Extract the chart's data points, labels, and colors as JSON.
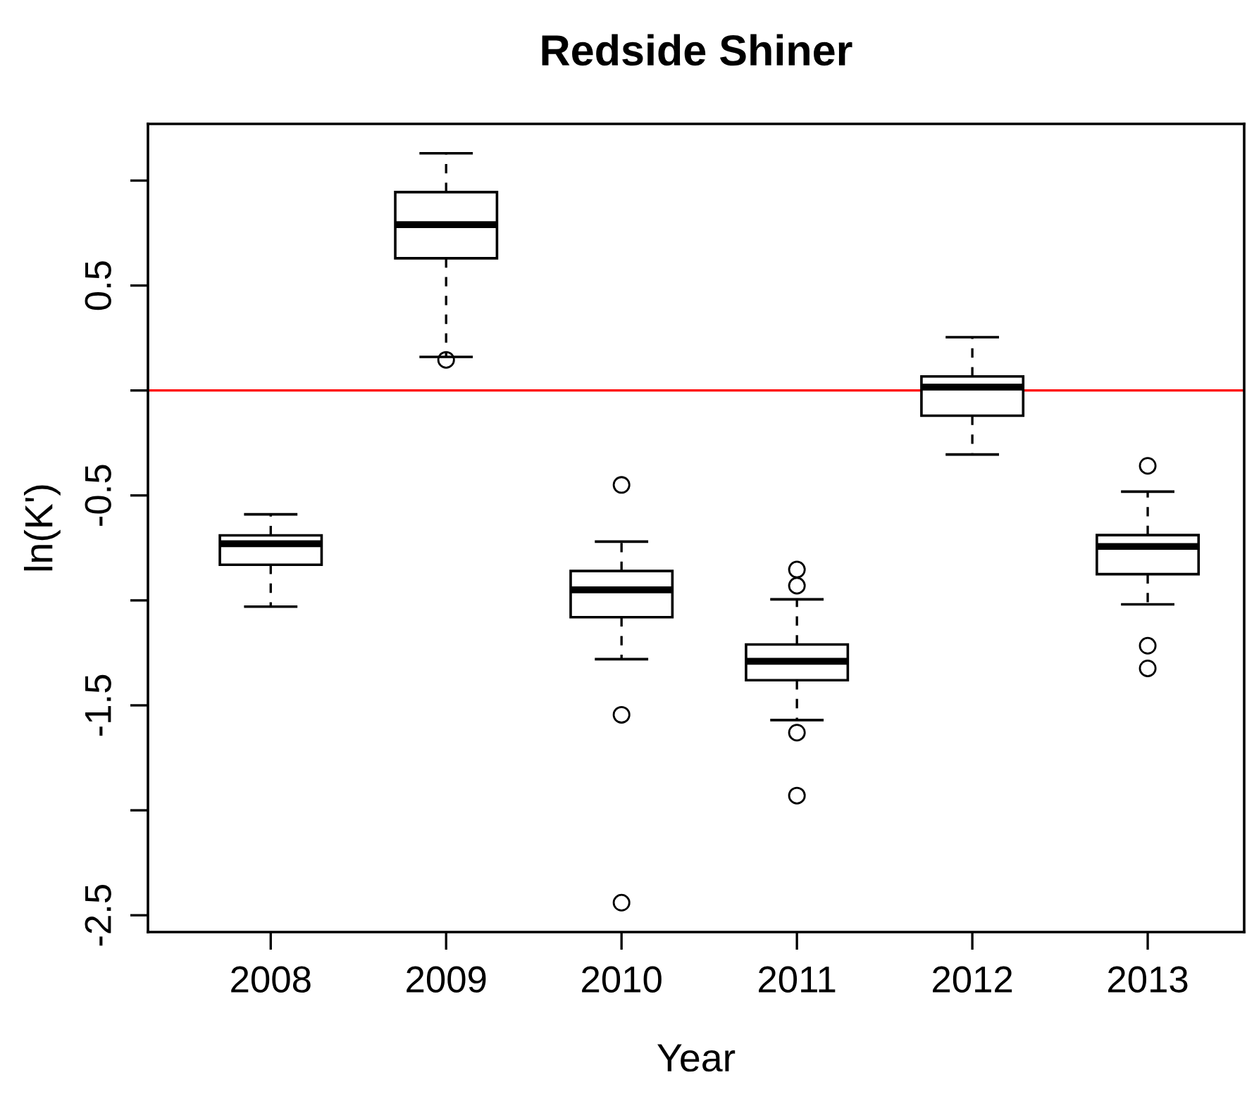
{
  "chart_data": {
    "type": "box",
    "title": "Redside Shiner",
    "xlabel": "Year",
    "ylabel": "ln(K')",
    "categories": [
      "2008",
      "2009",
      "2010",
      "2011",
      "2012",
      "2013"
    ],
    "boxes": [
      {
        "low": -1.03,
        "q1": -0.83,
        "median": -0.73,
        "q3": -0.69,
        "high": -0.59
      },
      {
        "low": 0.16,
        "q1": 0.63,
        "median": 0.79,
        "q3": 0.945,
        "high": 1.13,
        "outliers": [
          0.146
        ]
      },
      {
        "low": -1.28,
        "q1": -1.08,
        "median": -0.95,
        "q3": -0.86,
        "high": -0.72,
        "outliers": [
          -0.45,
          -1.545,
          -2.44
        ]
      },
      {
        "low": -1.57,
        "q1": -1.38,
        "median": -1.29,
        "q3": -1.21,
        "high": -0.995,
        "outliers": [
          -0.853,
          -0.93,
          -1.63,
          -1.93
        ]
      },
      {
        "low": -0.305,
        "q1": -0.12,
        "median": 0.016,
        "q3": 0.067,
        "high": 0.254
      },
      {
        "low": -1.019,
        "q1": -0.875,
        "median": -0.743,
        "q3": -0.689,
        "high": -0.482,
        "outliers": [
          -0.359,
          -1.216,
          -1.324
        ]
      }
    ],
    "ylim": [
      -2.58,
      1.27
    ],
    "yticks": [
      {
        "value": -2.5,
        "label": "-2.5"
      },
      {
        "value": -2.0,
        "label": null
      },
      {
        "value": -1.5,
        "label": "-1.5"
      },
      {
        "value": -1.0,
        "label": null
      },
      {
        "value": -0.5,
        "label": "-0.5"
      },
      {
        "value": 0.0,
        "label": null
      },
      {
        "value": 0.5,
        "label": "0.5"
      },
      {
        "value": 1.0,
        "label": null
      }
    ],
    "ref_lines": [
      {
        "axis": "y",
        "value": 0,
        "color": "#ff0000"
      }
    ],
    "grid": false
  }
}
